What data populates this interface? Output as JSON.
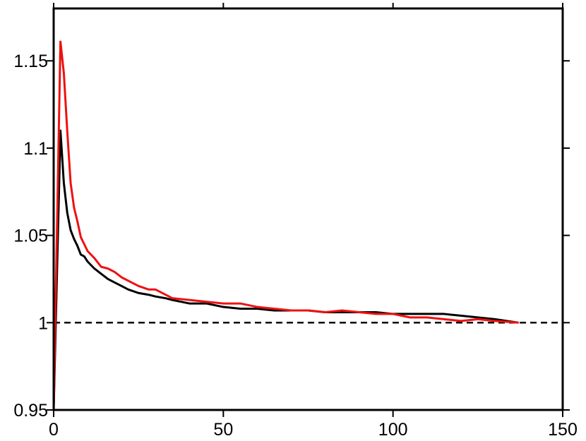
{
  "chart_data": {
    "type": "line",
    "x": [
      0,
      2,
      3,
      4,
      5,
      6,
      7,
      8,
      9,
      10,
      12,
      14,
      16,
      18,
      20,
      22,
      25,
      28,
      30,
      33,
      35,
      40,
      45,
      50,
      55,
      60,
      65,
      70,
      75,
      80,
      85,
      90,
      95,
      100,
      105,
      110,
      115,
      120,
      125,
      130,
      137
    ],
    "series": [
      {
        "color": "#000000",
        "values": [
          0.95,
          1.11,
          1.08,
          1.063,
          1.053,
          1.048,
          1.044,
          1.039,
          1.038,
          1.035,
          1.031,
          1.028,
          1.025,
          1.023,
          1.021,
          1.019,
          1.017,
          1.016,
          1.015,
          1.014,
          1.013,
          1.011,
          1.011,
          1.009,
          1.008,
          1.008,
          1.007,
          1.007,
          1.007,
          1.006,
          1.006,
          1.006,
          1.006,
          1.005,
          1.005,
          1.005,
          1.005,
          1.004,
          1.003,
          1.002,
          1.0
        ]
      },
      {
        "color": "#ee1111",
        "values": [
          0.95,
          1.161,
          1.143,
          1.11,
          1.08,
          1.066,
          1.058,
          1.049,
          1.045,
          1.041,
          1.037,
          1.032,
          1.031,
          1.029,
          1.026,
          1.024,
          1.021,
          1.019,
          1.019,
          1.016,
          1.014,
          1.013,
          1.012,
          1.011,
          1.011,
          1.009,
          1.008,
          1.007,
          1.007,
          1.006,
          1.007,
          1.006,
          1.005,
          1.005,
          1.003,
          1.003,
          1.002,
          1.001,
          1.002,
          1.001,
          1.0
        ]
      }
    ],
    "reference_line": 1,
    "xlim": [
      0,
      150
    ],
    "xticks": [
      0,
      50,
      100,
      150
    ],
    "ylim": [
      0.95,
      1.18
    ],
    "yticks": [
      0.95,
      1,
      1.05,
      1.1,
      1.15
    ]
  }
}
